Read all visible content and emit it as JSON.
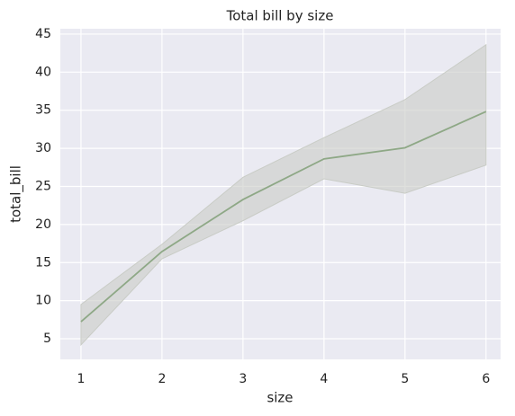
{
  "chart_data": {
    "type": "line",
    "title": "Total bill by size",
    "x_label": "size",
    "y_label": "total_bill",
    "x": [
      1,
      2,
      3,
      4,
      5,
      6
    ],
    "values": [
      7.24,
      16.45,
      23.28,
      28.61,
      30.07,
      34.83
    ],
    "lower": [
      4.2,
      15.5,
      20.5,
      26.0,
      24.1,
      27.8
    ],
    "upper": [
      9.5,
      17.4,
      26.2,
      31.4,
      36.4,
      43.6
    ],
    "color": "#8ea886",
    "band_color": "#c9ccc6",
    "xlim": [
      0.745,
      6.18
    ],
    "ylim": [
      2.29,
      45.7
    ],
    "xticks": [
      1,
      2,
      3,
      4,
      5,
      6
    ],
    "yticks": [
      5,
      10,
      15,
      20,
      25,
      30,
      35,
      40,
      45
    ],
    "grid": true
  }
}
